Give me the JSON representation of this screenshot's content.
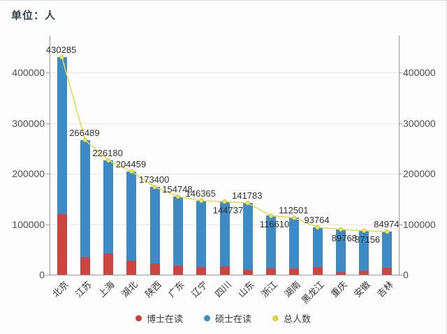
{
  "unit_label": "单位：人",
  "legend": {
    "items": [
      {
        "label": "博士在读",
        "color": "#c9403e"
      },
      {
        "label": "硕士在读",
        "color": "#3e8ac4"
      },
      {
        "label": "总人数",
        "color": "#e0d44d"
      }
    ]
  },
  "chart_data": {
    "type": "bar",
    "subtype": "stacked-bars-with-total-line",
    "title": "",
    "xlabel": "",
    "ylabel": "单位：人",
    "categories": [
      "北京",
      "江苏",
      "上海",
      "湖北",
      "陕西",
      "广东",
      "辽宁",
      "四川",
      "山东",
      "浙江",
      "湖南",
      "黑龙江",
      "重庆",
      "安徽",
      "吉林"
    ],
    "series": [
      {
        "name": "博士在读",
        "type": "bar",
        "stack": true,
        "color": "#cd4541",
        "values": [
          120000,
          35000,
          42000,
          27000,
          22000,
          18000,
          15000,
          16000,
          9000,
          12000,
          13000,
          15000,
          6000,
          8000,
          14000
        ]
      },
      {
        "name": "硕士在读",
        "type": "bar",
        "stack": true,
        "color": "#3e8ac4",
        "values": [
          310285,
          231489,
          184180,
          177459,
          151400,
          136748,
          131365,
          128737,
          132783,
          104610,
          99501,
          78764,
          83768,
          79156,
          70974
        ]
      },
      {
        "name": "总人数",
        "type": "line",
        "color": "#e5d94f",
        "marker_fill": "#ece35e",
        "marker_edge": "#cfc545",
        "values": [
          430285,
          266489,
          226180,
          204459,
          173400,
          154748,
          146365,
          144737,
          141783,
          116610,
          112501,
          93764,
          89768,
          87156,
          84974
        ]
      }
    ],
    "point_labels": [
      "430285",
      "266489",
      "226180",
      "204459",
      "173400",
      "154748",
      "146365",
      "144737",
      "141783",
      "116610",
      "112501",
      "93764",
      "89768",
      "87156",
      "84974"
    ],
    "label_below_indices": [
      7,
      9,
      12,
      13
    ],
    "y_ticks": [
      "0",
      "100000",
      "200000",
      "300000",
      "400000"
    ],
    "y_tick_values": [
      0,
      100000,
      200000,
      300000,
      400000
    ],
    "ylim": [
      0,
      473000
    ],
    "grid": true,
    "legend_position": "bottom"
  }
}
